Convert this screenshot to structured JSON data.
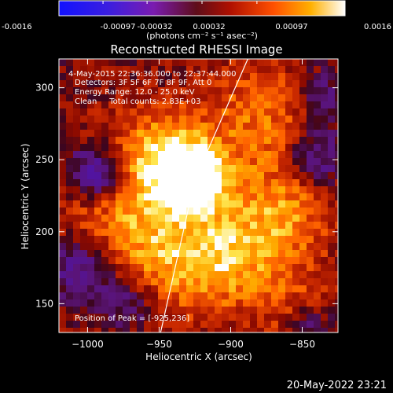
{
  "colorbar": {
    "tick_labels": [
      "-0.0016",
      "-0.00097",
      "-0.00032",
      "0.00032",
      "0.00097",
      "0.0016"
    ],
    "unit_label": "(photons cm⁻² s⁻¹ asec⁻²)",
    "range": [
      -0.0016,
      0.0016
    ]
  },
  "chart_data": {
    "type": "heatmap",
    "title": "Reconstructed RHESSI Image",
    "xlabel": "Heliocentric X (arcsec)",
    "ylabel": "Heliocentric Y (arcsec)",
    "xlim": [
      -1020,
      -825
    ],
    "ylim": [
      130,
      320
    ],
    "x_ticks": [
      {
        "value": -1000,
        "label": "−1000"
      },
      {
        "value": -950,
        "label": "−950"
      },
      {
        "value": -900,
        "label": "−900"
      },
      {
        "value": -850,
        "label": "−850"
      }
    ],
    "y_ticks": [
      {
        "value": 150,
        "label": "150"
      },
      {
        "value": 200,
        "label": "200"
      },
      {
        "value": 250,
        "label": "250"
      },
      {
        "value": 300,
        "label": "300"
      }
    ],
    "annotations": [
      "4-May-2015 22:36:36.000 to 22:37:44.000",
      "Detectors: 3F 5F 6F 7F 8F 9F, Att 0",
      "Energy Range: 12.0 - 25.0 keV",
      "Clean     Total counts: 2.83E+03"
    ],
    "peak_label": "Position of Peak = [-925,236]",
    "peak": [
      -925,
      236
    ],
    "colormap": "blue-purple-red-orange-yellow-white",
    "limb_line": [
      [
        -949,
        130
      ],
      [
        -925,
        236
      ],
      [
        -888,
        320
      ]
    ],
    "grid": false
  },
  "footer": {
    "date": "20-May-2022 23:21"
  },
  "colors": {
    "background": "#000000",
    "foreground": "#ffffff"
  }
}
